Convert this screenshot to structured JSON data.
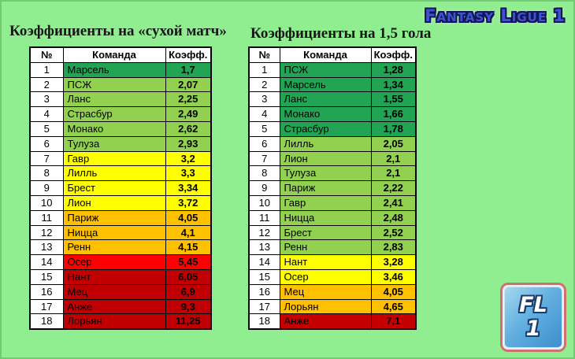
{
  "logo": {
    "text": "Fantasy Ligue 1",
    "color": "#3c55cc"
  },
  "badge": {
    "line1": "FL",
    "line2": "1"
  },
  "palette": {
    "background": "#90ee90",
    "dark_green": "#21a454",
    "light_green": "#92d050",
    "yellow": "#ffff00",
    "orange": "#ffc000",
    "bright_red": "#ff0000",
    "dark_red": "#c00000"
  },
  "chart_data": [
    {
      "type": "table",
      "title": "Коэффициенты на «сухой матч»",
      "columns": [
        "№",
        "Команда",
        "Коэфф."
      ],
      "rows": [
        {
          "num": "1",
          "team": "Марсель",
          "coef": "1,7",
          "color": "#21a454"
        },
        {
          "num": "2",
          "team": "ПСЖ",
          "coef": "2,07",
          "color": "#92d050"
        },
        {
          "num": "3",
          "team": "Ланс",
          "coef": "2,25",
          "color": "#92d050"
        },
        {
          "num": "4",
          "team": "Страсбур",
          "coef": "2,49",
          "color": "#92d050"
        },
        {
          "num": "5",
          "team": "Монако",
          "coef": "2,62",
          "color": "#92d050"
        },
        {
          "num": "6",
          "team": "Тулуза",
          "coef": "2,93",
          "color": "#92d050"
        },
        {
          "num": "7",
          "team": "Гавр",
          "coef": "3,2",
          "color": "#ffff00"
        },
        {
          "num": "8",
          "team": "Лилль",
          "coef": "3,3",
          "color": "#ffff00"
        },
        {
          "num": "9",
          "team": "Брест",
          "coef": "3,34",
          "color": "#ffff00"
        },
        {
          "num": "10",
          "team": "Лион",
          "coef": "3,72",
          "color": "#ffff00"
        },
        {
          "num": "11",
          "team": "Париж",
          "coef": "4,05",
          "color": "#ffc000"
        },
        {
          "num": "12",
          "team": "Ницца",
          "coef": "4,1",
          "color": "#ffc000"
        },
        {
          "num": "13",
          "team": "Ренн",
          "coef": "4,15",
          "color": "#ffc000"
        },
        {
          "num": "14",
          "team": "Осер",
          "coef": "5,45",
          "color": "#ff0000"
        },
        {
          "num": "15",
          "team": "Нант",
          "coef": "6,05",
          "color": "#c00000"
        },
        {
          "num": "16",
          "team": "Мец",
          "coef": "6,9",
          "color": "#c00000"
        },
        {
          "num": "17",
          "team": "Анже",
          "coef": "9,3",
          "color": "#c00000"
        },
        {
          "num": "18",
          "team": "Лорьян",
          "coef": "11,25",
          "color": "#c00000"
        }
      ]
    },
    {
      "type": "table",
      "title": "Коэффициенты на 1,5 гола",
      "columns": [
        "№",
        "Команда",
        "Коэфф."
      ],
      "rows": [
        {
          "num": "1",
          "team": "ПСЖ",
          "coef": "1,28",
          "color": "#21a454"
        },
        {
          "num": "2",
          "team": "Марсель",
          "coef": "1,34",
          "color": "#21a454"
        },
        {
          "num": "3",
          "team": "Ланс",
          "coef": "1,55",
          "color": "#21a454"
        },
        {
          "num": "4",
          "team": "Монако",
          "coef": "1,66",
          "color": "#21a454"
        },
        {
          "num": "5",
          "team": "Страсбур",
          "coef": "1,78",
          "color": "#21a454"
        },
        {
          "num": "6",
          "team": "Лилль",
          "coef": "2,05",
          "color": "#92d050"
        },
        {
          "num": "7",
          "team": "Лион",
          "coef": "2,1",
          "color": "#92d050"
        },
        {
          "num": "8",
          "team": "Тулуза",
          "coef": "2,1",
          "color": "#92d050"
        },
        {
          "num": "9",
          "team": "Париж",
          "coef": "2,22",
          "color": "#92d050"
        },
        {
          "num": "10",
          "team": "Гавр",
          "coef": "2,41",
          "color": "#92d050"
        },
        {
          "num": "11",
          "team": "Ницца",
          "coef": "2,48",
          "color": "#92d050"
        },
        {
          "num": "12",
          "team": "Брест",
          "coef": "2,52",
          "color": "#92d050"
        },
        {
          "num": "13",
          "team": "Ренн",
          "coef": "2,83",
          "color": "#92d050"
        },
        {
          "num": "14",
          "team": "Нант",
          "coef": "3,28",
          "color": "#ffff00"
        },
        {
          "num": "15",
          "team": "Осер",
          "coef": "3,46",
          "color": "#ffff00"
        },
        {
          "num": "16",
          "team": "Мец",
          "coef": "4,05",
          "color": "#ffc000"
        },
        {
          "num": "17",
          "team": "Лорьян",
          "coef": "4,65",
          "color": "#ffc000"
        },
        {
          "num": "18",
          "team": "Анже",
          "coef": "7,1",
          "color": "#c40000"
        }
      ]
    }
  ]
}
